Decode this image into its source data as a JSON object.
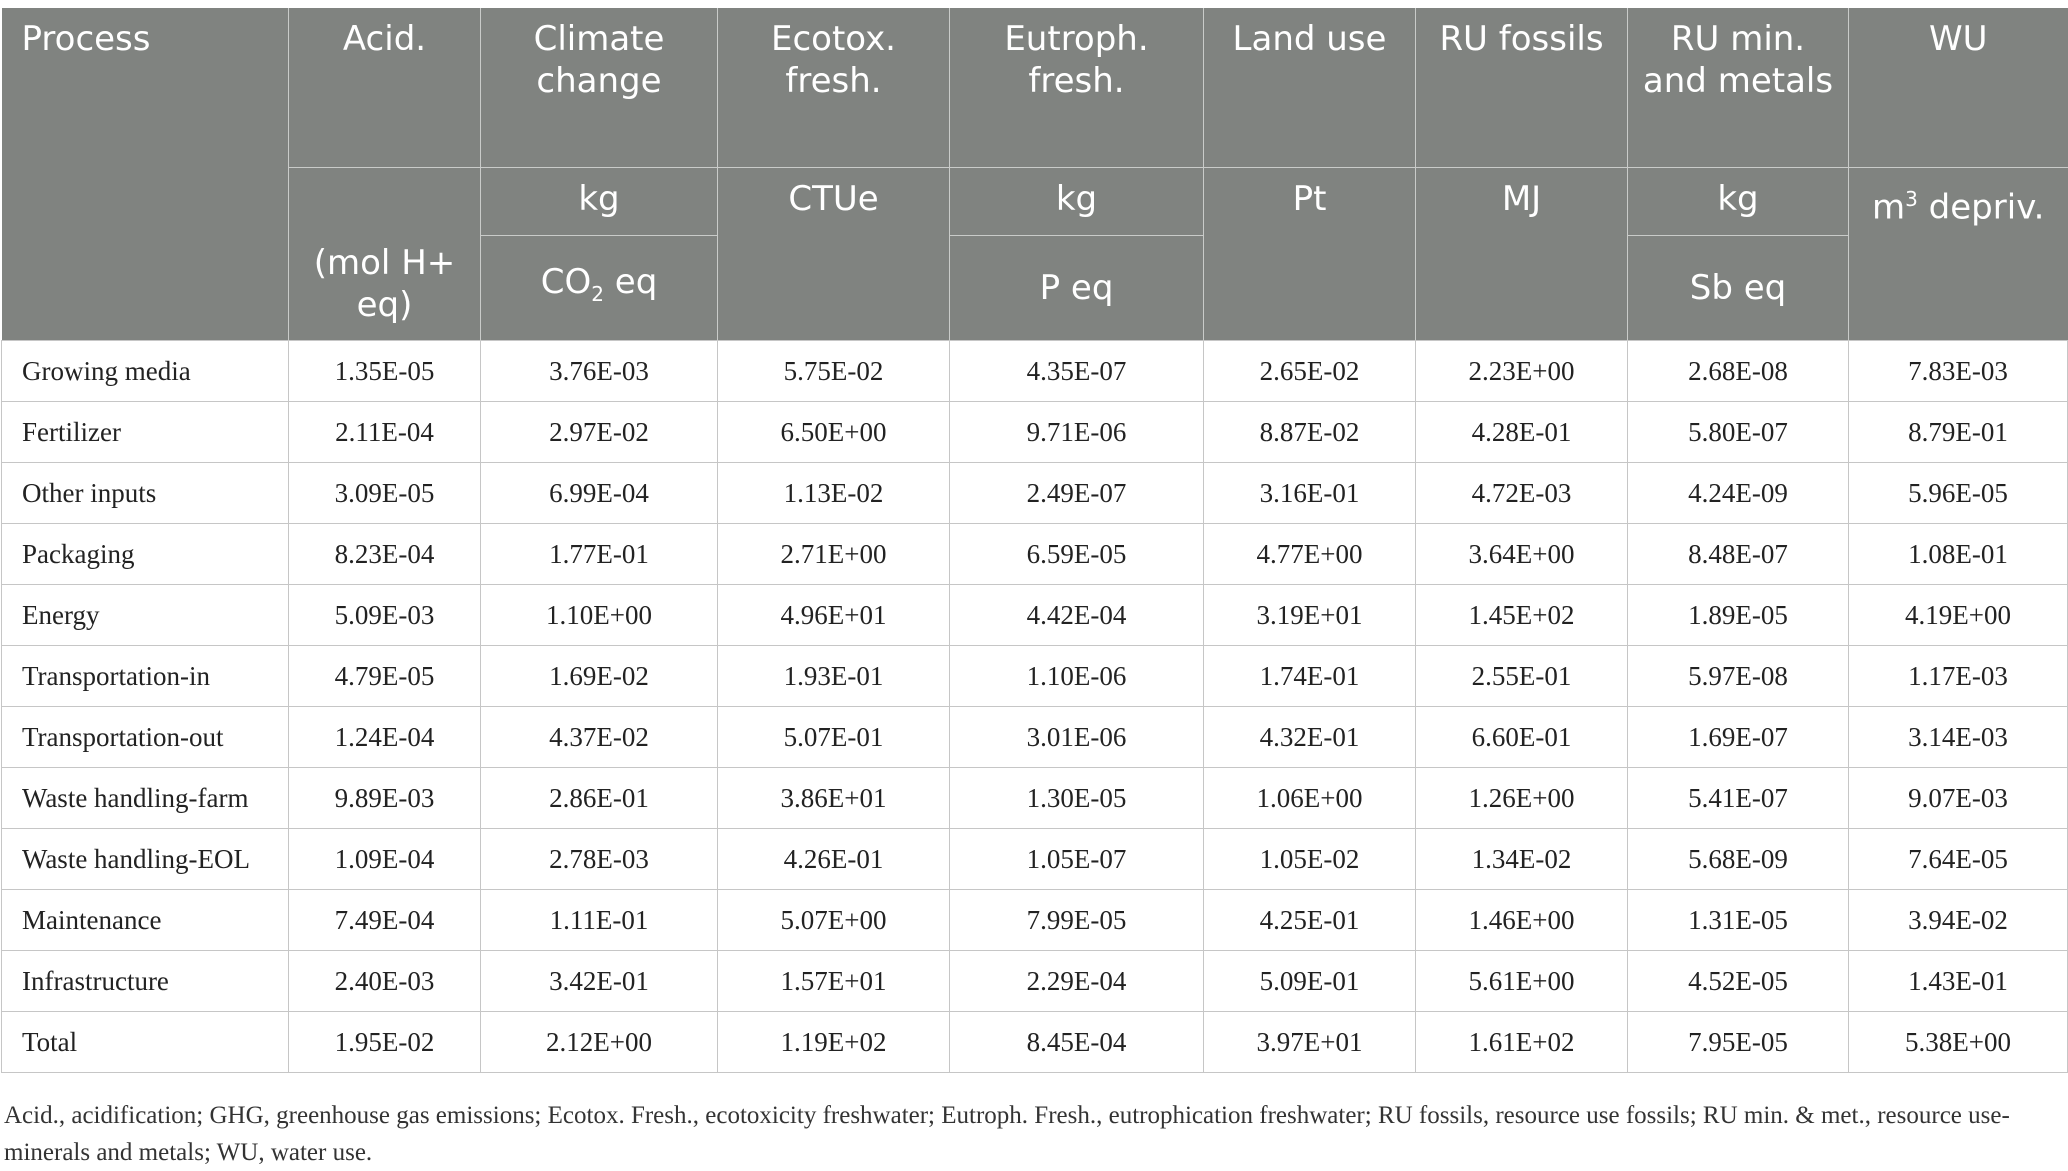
{
  "header": {
    "process": "Process",
    "columns": [
      {
        "name": "Acid.",
        "unit1": "",
        "unit2": "(mol H+ eq)"
      },
      {
        "name": "Climate change",
        "unit1": "kg",
        "unit2_main": "CO",
        "unit2_sub": "2",
        "unit2_tail": " eq"
      },
      {
        "name": "Ecotox. fresh.",
        "unit1": "CTUe",
        "unit2": ""
      },
      {
        "name": "Eutroph. fresh.",
        "unit1": "kg",
        "unit2": "P eq"
      },
      {
        "name": "Land use",
        "unit1": "Pt",
        "unit2": ""
      },
      {
        "name": "RU fossils",
        "unit1": "MJ",
        "unit2": ""
      },
      {
        "name": "RU min. and metals",
        "unit1": "kg",
        "unit2": "Sb eq"
      },
      {
        "name": "WU",
        "unit1_main": "m",
        "unit1_sup": "3",
        "unit1_tail": " depriv.",
        "unit2": ""
      }
    ]
  },
  "rows": [
    {
      "process": "Growing media",
      "values": [
        "1.35E-05",
        "3.76E-03",
        "5.75E-02",
        "4.35E-07",
        "2.65E-02",
        "2.23E+00",
        "2.68E-08",
        "7.83E-03"
      ]
    },
    {
      "process": "Fertilizer",
      "values": [
        "2.11E-04",
        "2.97E-02",
        "6.50E+00",
        "9.71E-06",
        "8.87E-02",
        "4.28E-01",
        "5.80E-07",
        "8.79E-01"
      ]
    },
    {
      "process": "Other inputs",
      "values": [
        "3.09E-05",
        "6.99E-04",
        "1.13E-02",
        "2.49E-07",
        "3.16E-01",
        "4.72E-03",
        "4.24E-09",
        "5.96E-05"
      ]
    },
    {
      "process": "Packaging",
      "values": [
        "8.23E-04",
        "1.77E-01",
        "2.71E+00",
        "6.59E-05",
        "4.77E+00",
        "3.64E+00",
        "8.48E-07",
        "1.08E-01"
      ]
    },
    {
      "process": "Energy",
      "values": [
        "5.09E-03",
        "1.10E+00",
        "4.96E+01",
        "4.42E-04",
        "3.19E+01",
        "1.45E+02",
        "1.89E-05",
        "4.19E+00"
      ]
    },
    {
      "process": "Transportation-in",
      "values": [
        "4.79E-05",
        "1.69E-02",
        "1.93E-01",
        "1.10E-06",
        "1.74E-01",
        "2.55E-01",
        "5.97E-08",
        "1.17E-03"
      ]
    },
    {
      "process": "Transportation-out",
      "values": [
        "1.24E-04",
        "4.37E-02",
        "5.07E-01",
        "3.01E-06",
        "4.32E-01",
        "6.60E-01",
        "1.69E-07",
        "3.14E-03"
      ]
    },
    {
      "process": "Waste handling-farm",
      "values": [
        "9.89E-03",
        "2.86E-01",
        "3.86E+01",
        "1.30E-05",
        "1.06E+00",
        "1.26E+00",
        "5.41E-07",
        "9.07E-03"
      ]
    },
    {
      "process": "Waste handling-EOL",
      "values": [
        "1.09E-04",
        "2.78E-03",
        "4.26E-01",
        "1.05E-07",
        "1.05E-02",
        "1.34E-02",
        "5.68E-09",
        "7.64E-05"
      ]
    },
    {
      "process": "Maintenance",
      "values": [
        "7.49E-04",
        "1.11E-01",
        "5.07E+00",
        "7.99E-05",
        "4.25E-01",
        "1.46E+00",
        "1.31E-05",
        "3.94E-02"
      ]
    },
    {
      "process": "Infrastructure",
      "values": [
        "2.40E-03",
        "3.42E-01",
        "1.57E+01",
        "2.29E-04",
        "5.09E-01",
        "5.61E+00",
        "4.52E-05",
        "1.43E-01"
      ]
    },
    {
      "process": "Total",
      "values": [
        "1.95E-02",
        "2.12E+00",
        "1.19E+02",
        "8.45E-04",
        "3.97E+01",
        "1.61E+02",
        "7.95E-05",
        "5.38E+00"
      ]
    }
  ],
  "footnote": "Acid., acidification; GHG, greenhouse gas emissions; Ecotox. Fresh., ecotoxicity freshwater; Eutroph. Fresh., eutrophication freshwater; RU fossils, resource use fossils; RU min. & met., resource use-minerals and metals; WU, water use."
}
